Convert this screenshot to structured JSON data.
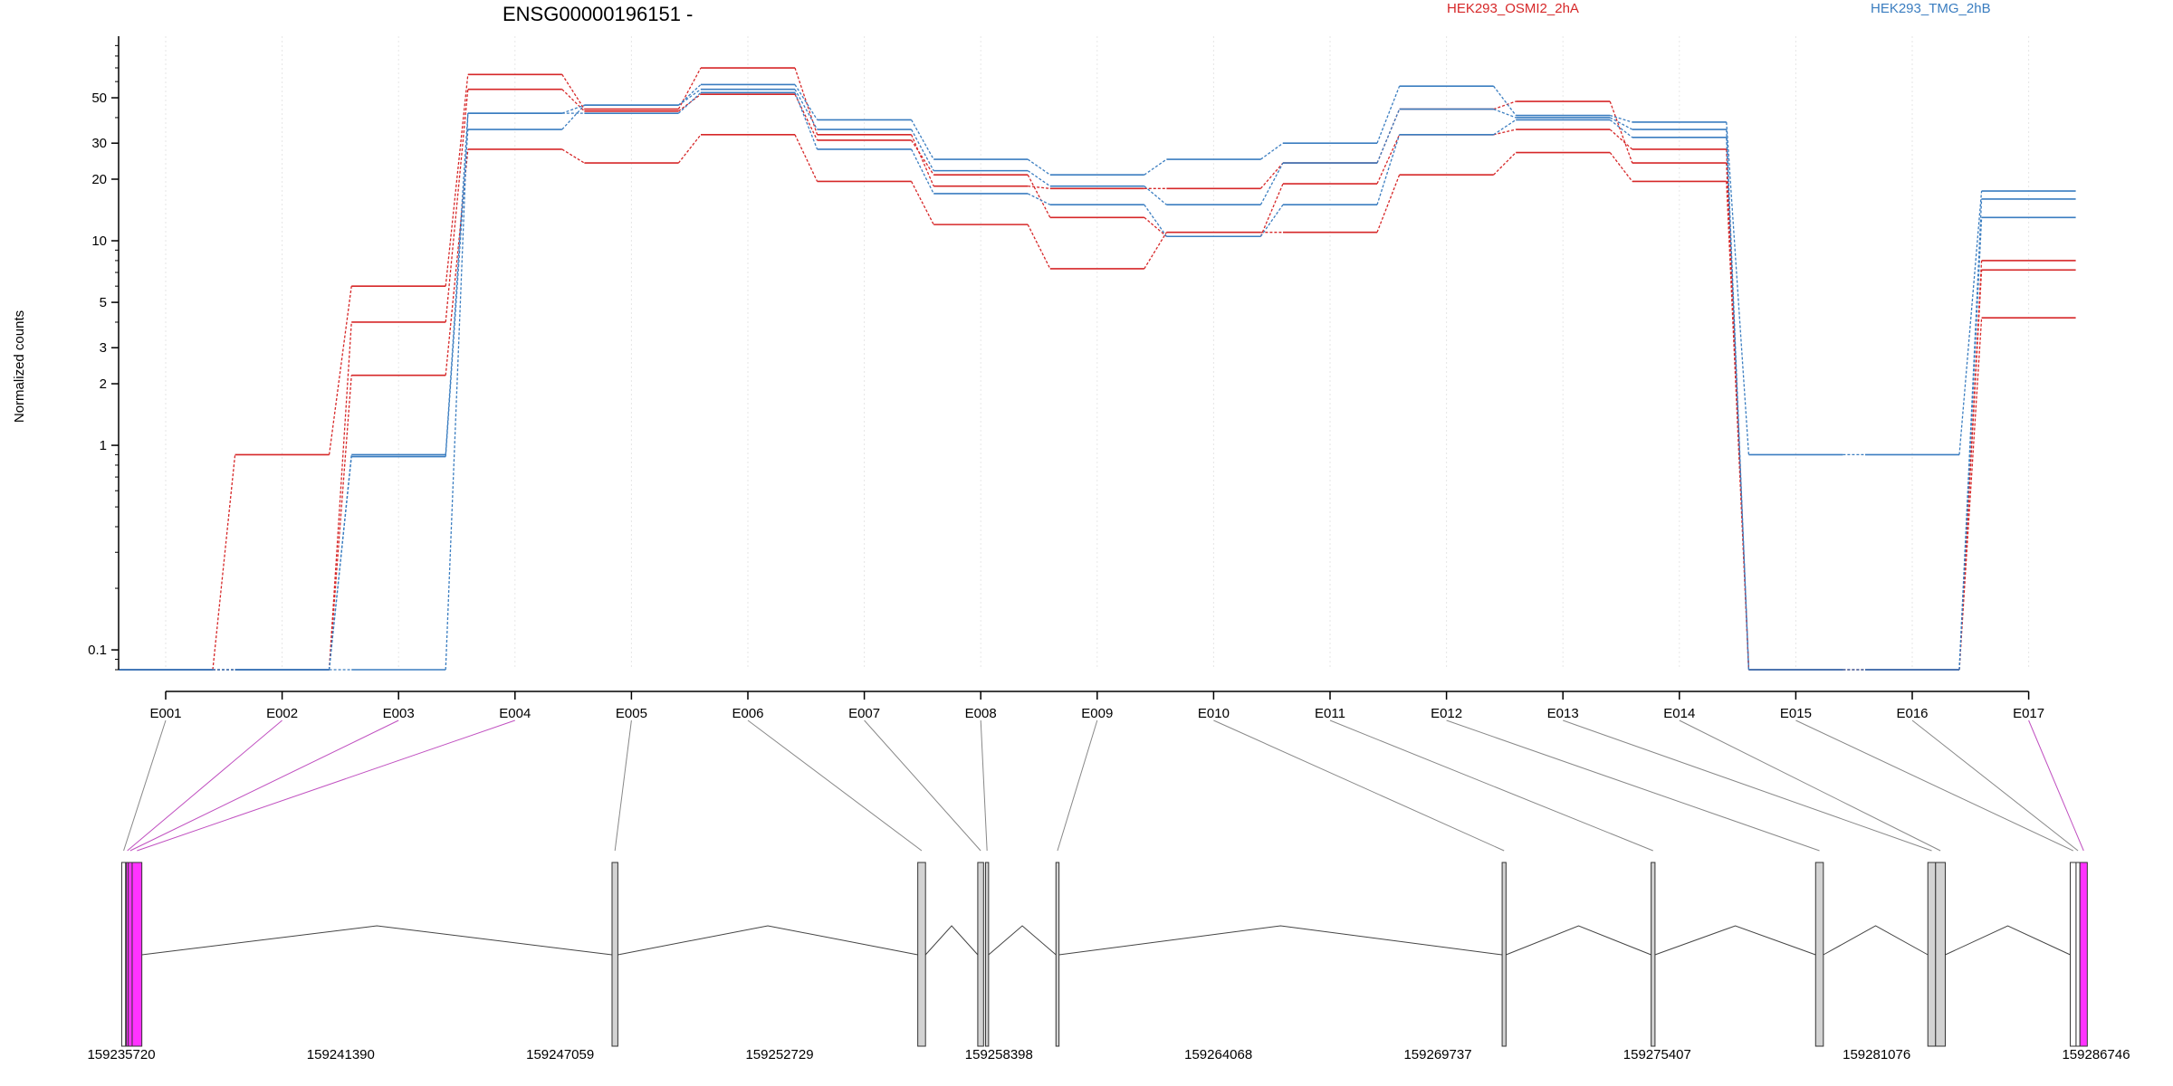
{
  "chart_data": {
    "type": "line",
    "title": "ENSG00000196151 -",
    "xlabel": "",
    "ylabel": "Normalized counts",
    "yscale": "log",
    "ylim": [
      0.08,
      100
    ],
    "grid": "vertical dotted at exon centers",
    "legend": [
      {
        "name": "HEK293_OSMI2_2hA",
        "color": "#d62728"
      },
      {
        "name": "HEK293_TMG_2hB",
        "color": "#3a7dc0"
      }
    ],
    "y_ticks": [
      0.1,
      1,
      2,
      3,
      5,
      10,
      20,
      30,
      50
    ],
    "categories": [
      "E001",
      "E002",
      "E003",
      "E004",
      "E005",
      "E006",
      "E007",
      "E008",
      "E009",
      "E010",
      "E011",
      "E012",
      "E013",
      "E014",
      "E015",
      "E016",
      "E017"
    ],
    "series": [
      {
        "group": "HEK293_OSMI2_2hA",
        "color": "#d62728",
        "values": [
          0.08,
          0.9,
          6,
          65,
          44,
          70,
          33,
          18.5,
          18,
          18,
          24,
          44,
          48,
          24,
          0.08,
          0.08,
          8
        ]
      },
      {
        "group": "HEK293_OSMI2_2hA",
        "color": "#d62728",
        "values": [
          0.08,
          0.08,
          4,
          55,
          43,
          52,
          31,
          21,
          13,
          10.5,
          19,
          33,
          35,
          28,
          0.08,
          0.08,
          7.2
        ]
      },
      {
        "group": "HEK293_OSMI2_2hA",
        "color": "#d62728",
        "values": [
          0.08,
          0.08,
          2.2,
          28,
          24,
          33,
          19.5,
          12,
          7.3,
          11,
          11,
          21,
          27,
          19.5,
          0.08,
          0.08,
          4.2
        ]
      },
      {
        "group": "HEK293_TMG_2hB",
        "color": "#3a7dc0",
        "values": [
          0.08,
          0.08,
          0.9,
          42,
          46,
          58,
          39,
          25,
          21,
          25,
          30,
          57,
          41,
          38,
          0.9,
          0.9,
          17.5
        ]
      },
      {
        "group": "HEK293_TMG_2hB",
        "color": "#3a7dc0",
        "values": [
          0.08,
          0.08,
          0.88,
          35,
          46,
          55,
          35,
          22,
          18.5,
          15,
          24,
          44,
          40,
          35,
          0.08,
          0.08,
          16
        ]
      },
      {
        "group": "HEK293_TMG_2hB",
        "color": "#3a7dc0",
        "values": [
          0.08,
          0.08,
          0.08,
          42,
          42,
          53,
          28,
          17,
          15,
          10.5,
          15,
          33,
          39,
          32,
          0.08,
          0.08,
          13
        ]
      }
    ],
    "gene_model": {
      "coordinates": [
        "159235720",
        "159241390",
        "159247059",
        "159252729",
        "159258398",
        "159264068",
        "159269737",
        "159275407",
        "159281076",
        "159286746"
      ],
      "coord_range": [
        159235720,
        159286746
      ],
      "exons": [
        {
          "id": "E001",
          "start": 159235730,
          "end": 159235830,
          "color": "#ffffff"
        },
        {
          "id": "E002",
          "start": 159235850,
          "end": 159235900,
          "color": "#ff33ff"
        },
        {
          "id": "E003",
          "start": 159235900,
          "end": 159236000,
          "color": "#ff33ff"
        },
        {
          "id": "E004",
          "start": 159236000,
          "end": 159236250,
          "color": "#ff33ff"
        },
        {
          "id": "E005",
          "start": 159248400,
          "end": 159248550,
          "color": "#d3d3d3"
        },
        {
          "id": "E006",
          "start": 159256300,
          "end": 159256500,
          "color": "#d3d3d3"
        },
        {
          "id": "E007",
          "start": 159257850,
          "end": 159258000,
          "color": "#d3d3d3"
        },
        {
          "id": "E008",
          "start": 159258050,
          "end": 159258130,
          "color": "#d3d3d3"
        },
        {
          "id": "E009",
          "start": 159259870,
          "end": 159259950,
          "color": "#d3d3d3"
        },
        {
          "id": "E010",
          "start": 159271400,
          "end": 159271500,
          "color": "#d3d3d3"
        },
        {
          "id": "E011",
          "start": 159275250,
          "end": 159275350,
          "color": "#d3d3d3"
        },
        {
          "id": "E012",
          "start": 159279500,
          "end": 159279700,
          "color": "#d3d3d3"
        },
        {
          "id": "E013",
          "start": 159282400,
          "end": 159282600,
          "color": "#d3d3d3"
        },
        {
          "id": "E014",
          "start": 159282600,
          "end": 159282850,
          "color": "#d3d3d3"
        },
        {
          "id": "E015",
          "start": 159286080,
          "end": 159286230,
          "color": "#ffffff"
        },
        {
          "id": "E016",
          "start": 159286230,
          "end": 159286330,
          "color": "#ffffff"
        },
        {
          "id": "E017",
          "start": 159286330,
          "end": 159286520,
          "color": "#ff33ff"
        }
      ]
    }
  }
}
